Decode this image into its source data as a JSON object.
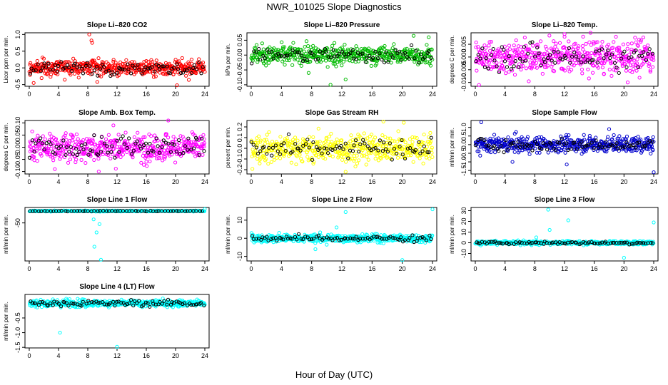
{
  "figure_title": "NWR_101025  Slope Diagnostics",
  "x_axis_label": "Hour of Day (UTC)",
  "chart_data": [
    {
      "type": "scatter",
      "title": "Slope Li–820 CO2",
      "ylabel": "Licor ppm per min.",
      "color": "#ff0000",
      "xlim": [
        0,
        24
      ],
      "ylim": [
        -0.55,
        1.05
      ],
      "xticks": [
        "0",
        "4",
        "8",
        "12",
        "16",
        "20",
        "24"
      ],
      "yticks": [
        -0.5,
        0.0,
        0.5,
        1.0
      ],
      "ytick_labels": [
        "-0.5",
        "0.0",
        "0.5",
        "1.0"
      ],
      "spread": 0.16,
      "n": 480,
      "black_n": 85,
      "outliers": [
        [
          8.2,
          1.0
        ],
        [
          8.5,
          0.82
        ],
        [
          8.6,
          0.75
        ],
        [
          9.3,
          -0.42
        ],
        [
          0.6,
          -0.45
        ],
        [
          20.2,
          -0.52
        ]
      ]
    },
    {
      "type": "scatter",
      "title": "Slope Li–820 Pressure",
      "ylabel": "kPa per min.",
      "color": "#00bb00",
      "xlim": [
        0,
        24
      ],
      "ylim": [
        -0.105,
        0.075
      ],
      "xticks": [
        "0",
        "4",
        "8",
        "12",
        "16",
        "20",
        "24"
      ],
      "yticks": [
        -0.1,
        -0.05,
        0.0,
        0.05
      ],
      "ytick_labels": [
        "-0.10",
        "-0.05",
        "0.00",
        "0.05"
      ],
      "spread": 0.022,
      "n": 480,
      "black_n": 85,
      "outliers": [
        [
          10.5,
          -0.1
        ],
        [
          12.5,
          -0.082
        ],
        [
          21.5,
          0.065
        ],
        [
          23.5,
          0.06
        ],
        [
          7.6,
          -0.06
        ]
      ]
    },
    {
      "type": "scatter",
      "title": "Slope Li–820 Temp.",
      "ylabel": "degrees C per min.",
      "color": "#ff00ff",
      "xlim": [
        0,
        24
      ],
      "ylim": [
        -0.0115,
        0.0095
      ],
      "xticks": [
        "0",
        "4",
        "8",
        "12",
        "16",
        "20",
        "24"
      ],
      "yticks": [
        -0.01,
        -0.005,
        0.0,
        0.005
      ],
      "ytick_labels": [
        "-0.010",
        "-0.005",
        "0.000",
        "0.005"
      ],
      "spread": 0.0045,
      "n": 480,
      "black_n": 85,
      "outliers": [
        [
          12,
          0.009
        ],
        [
          0.5,
          -0.011
        ],
        [
          20.5,
          -0.01
        ],
        [
          14.5,
          0.008
        ]
      ]
    },
    {
      "type": "scatter",
      "title": "Slope Amb. Box Temp.",
      "ylabel": "degrees C per min.",
      "color": "#ff00ff",
      "xlim": [
        0,
        24
      ],
      "ylim": [
        -0.11,
        0.11
      ],
      "xticks": [
        "0",
        "4",
        "8",
        "12",
        "16",
        "20",
        "24"
      ],
      "yticks": [
        -0.1,
        -0.05,
        0.0,
        0.05,
        0.1
      ],
      "ytick_labels": [
        "-0.10",
        "-0.05",
        "0.00",
        "0.05",
        "0.10"
      ],
      "spread": 0.04,
      "n": 480,
      "black_n": 85,
      "outliers": [
        [
          9.5,
          -0.1
        ],
        [
          19,
          0.11
        ],
        [
          11.5,
          0.09
        ],
        [
          3.5,
          -0.09
        ]
      ]
    },
    {
      "type": "scatter",
      "title": "Slope Gas Stream RH",
      "ylabel": "percent per min.",
      "color": "#ffff00",
      "xlim": [
        0,
        24
      ],
      "ylim": [
        -0.24,
        0.26
      ],
      "xticks": [
        "0",
        "4",
        "8",
        "12",
        "16",
        "20",
        "24"
      ],
      "yticks": [
        -0.2,
        -0.1,
        0.0,
        0.1,
        0.2
      ],
      "ytick_labels": [
        "-0.2",
        "-0.1",
        "0.0",
        "0.1",
        "0.2"
      ],
      "spread": 0.09,
      "n": 480,
      "black_n": 85,
      "outliers": [
        [
          12.5,
          -0.22
        ],
        [
          17.5,
          0.25
        ],
        [
          20.2,
          0.24
        ]
      ]
    },
    {
      "type": "scatter",
      "title": "Slope Sample Flow",
      "ylabel": "ml/min per min.",
      "color": "#0000cc",
      "xlim": [
        0,
        24
      ],
      "ylim": [
        -1.7,
        1.4
      ],
      "xticks": [
        "0",
        "4",
        "8",
        "12",
        "16",
        "20",
        "24"
      ],
      "yticks": [
        -1.5,
        -1.0,
        -0.5,
        0.0,
        0.5,
        1.0
      ],
      "ytick_labels": [
        "-1.5",
        "-1.0",
        "-0.5",
        "0.0",
        "0.5",
        "1.0"
      ],
      "spread": 0.32,
      "n": 480,
      "black_n": 85,
      "outliers": [
        [
          0.8,
          1.3
        ],
        [
          12.3,
          -1.15
        ],
        [
          24,
          -1.6
        ],
        [
          5,
          -1.0
        ],
        [
          18,
          0.9
        ]
      ]
    },
    {
      "type": "scatter",
      "title": "Slope Line 1 Flow",
      "ylabel": "ml/min per min.",
      "color": "#00ffff",
      "xlim": [
        0,
        24
      ],
      "ylim": [
        -210,
        15
      ],
      "xticks": [
        "0",
        "4",
        "8",
        "12",
        "16",
        "20",
        "24"
      ],
      "yticks": [
        -50
      ],
      "ytick_labels": [
        "-50"
      ],
      "spread": 1.5,
      "n": 300,
      "black_n": 60,
      "outliers": [
        [
          8.8,
          -35
        ],
        [
          9.2,
          -90
        ],
        [
          9.6,
          -55
        ],
        [
          8.9,
          -150
        ],
        [
          9.8,
          -205
        ],
        [
          24,
          8
        ]
      ]
    },
    {
      "type": "scatter",
      "title": "Slope Line 2 Flow",
      "ylabel": "ml/min per min.",
      "color": "#00ffff",
      "xlim": [
        0,
        24
      ],
      "ylim": [
        -12.5,
        17
      ],
      "xticks": [
        "0",
        "4",
        "8",
        "12",
        "16",
        "20",
        "24"
      ],
      "yticks": [
        -10,
        0,
        10
      ],
      "ytick_labels": [
        "-10",
        "0",
        "10"
      ],
      "spread": 1.5,
      "n": 480,
      "black_n": 85,
      "outliers": [
        [
          8.5,
          -6
        ],
        [
          10,
          -3.5
        ],
        [
          12.5,
          14.5
        ],
        [
          20,
          -12
        ],
        [
          24,
          16
        ],
        [
          11.3,
          6
        ],
        [
          3.7,
          3
        ]
      ]
    },
    {
      "type": "scatter",
      "title": "Slope Line 3 Flow",
      "ylabel": "ml/min per min.",
      "color": "#00ffff",
      "xlim": [
        0,
        24
      ],
      "ylim": [
        -17,
        33
      ],
      "xticks": [
        "0",
        "4",
        "8",
        "12",
        "16",
        "20",
        "24"
      ],
      "yticks": [
        -10,
        0,
        10,
        20,
        30
      ],
      "ytick_labels": [
        "-10",
        "0",
        "10",
        "20",
        "30"
      ],
      "spread": 1.2,
      "n": 480,
      "black_n": 85,
      "outliers": [
        [
          9.8,
          31
        ],
        [
          12.5,
          21
        ],
        [
          24,
          19
        ],
        [
          20,
          -14
        ],
        [
          8.2,
          5
        ],
        [
          10,
          12
        ]
      ]
    },
    {
      "type": "scatter",
      "title": "Slope Line 4 (LT) Flow",
      "ylabel": "ml/min per min.",
      "color": "#00ffff",
      "xlim": [
        0,
        24
      ],
      "ylim": [
        -1.52,
        0.3
      ],
      "xticks": [
        "0",
        "4",
        "8",
        "12",
        "16",
        "20",
        "24"
      ],
      "yticks": [
        -1.5,
        -1.0,
        -0.5
      ],
      "ytick_labels": [
        "-1.5",
        "-1.0",
        "-0.5"
      ],
      "spread": 0.085,
      "n": 480,
      "black_n": 85,
      "outliers": [
        [
          4.2,
          -1.0
        ],
        [
          12,
          -1.48
        ],
        [
          1,
          0.1
        ]
      ]
    }
  ]
}
